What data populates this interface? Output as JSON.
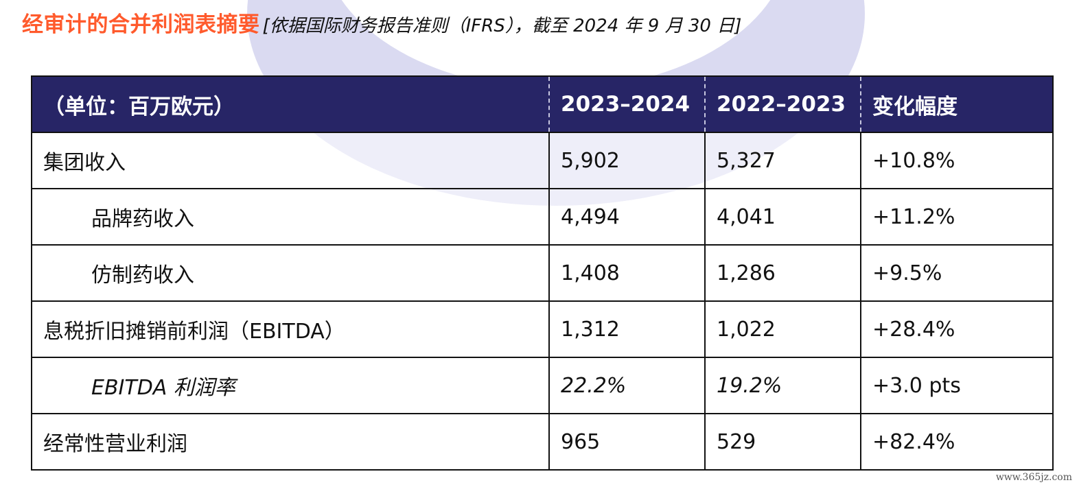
{
  "title": {
    "main": "经审计的合并利润表摘要",
    "sub": "[依据国际财务报告准则（IFRS），截至 2024 年 9 月 30 日]"
  },
  "table": {
    "headers": [
      "（单位：百万欧元）",
      "2023–2024",
      "2022–2023",
      "变化幅度"
    ],
    "rows": [
      {
        "label": "集团收入",
        "y2024": "5,902",
        "y2023": "5,327",
        "change": "+10.8%",
        "indent": false,
        "italic": false
      },
      {
        "label": "品牌药收入",
        "y2024": "4,494",
        "y2023": "4,041",
        "change": "+11.2%",
        "indent": true,
        "italic": false
      },
      {
        "label": "仿制药收入",
        "y2024": "1,408",
        "y2023": "1,286",
        "change": "+9.5%",
        "indent": true,
        "italic": false
      },
      {
        "label": "息税折旧摊销前利润（EBITDA）",
        "y2024": "1,312",
        "y2023": "1,022",
        "change": "+28.4%",
        "indent": false,
        "italic": false
      },
      {
        "label": "EBITDA 利润率",
        "y2024": "22.2%",
        "y2023": "19.2%",
        "change": "+3.0 pts",
        "indent": true,
        "italic": true
      },
      {
        "label": "经常性营业利润",
        "y2024": "965",
        "y2023": "529",
        "change": "+82.4%",
        "indent": false,
        "italic": false
      }
    ]
  },
  "watermark": "www.365jz.com",
  "colors": {
    "title_accent": "#ff5a2c",
    "header_bg": "#272566",
    "background_shape": "#d6d6ef"
  }
}
